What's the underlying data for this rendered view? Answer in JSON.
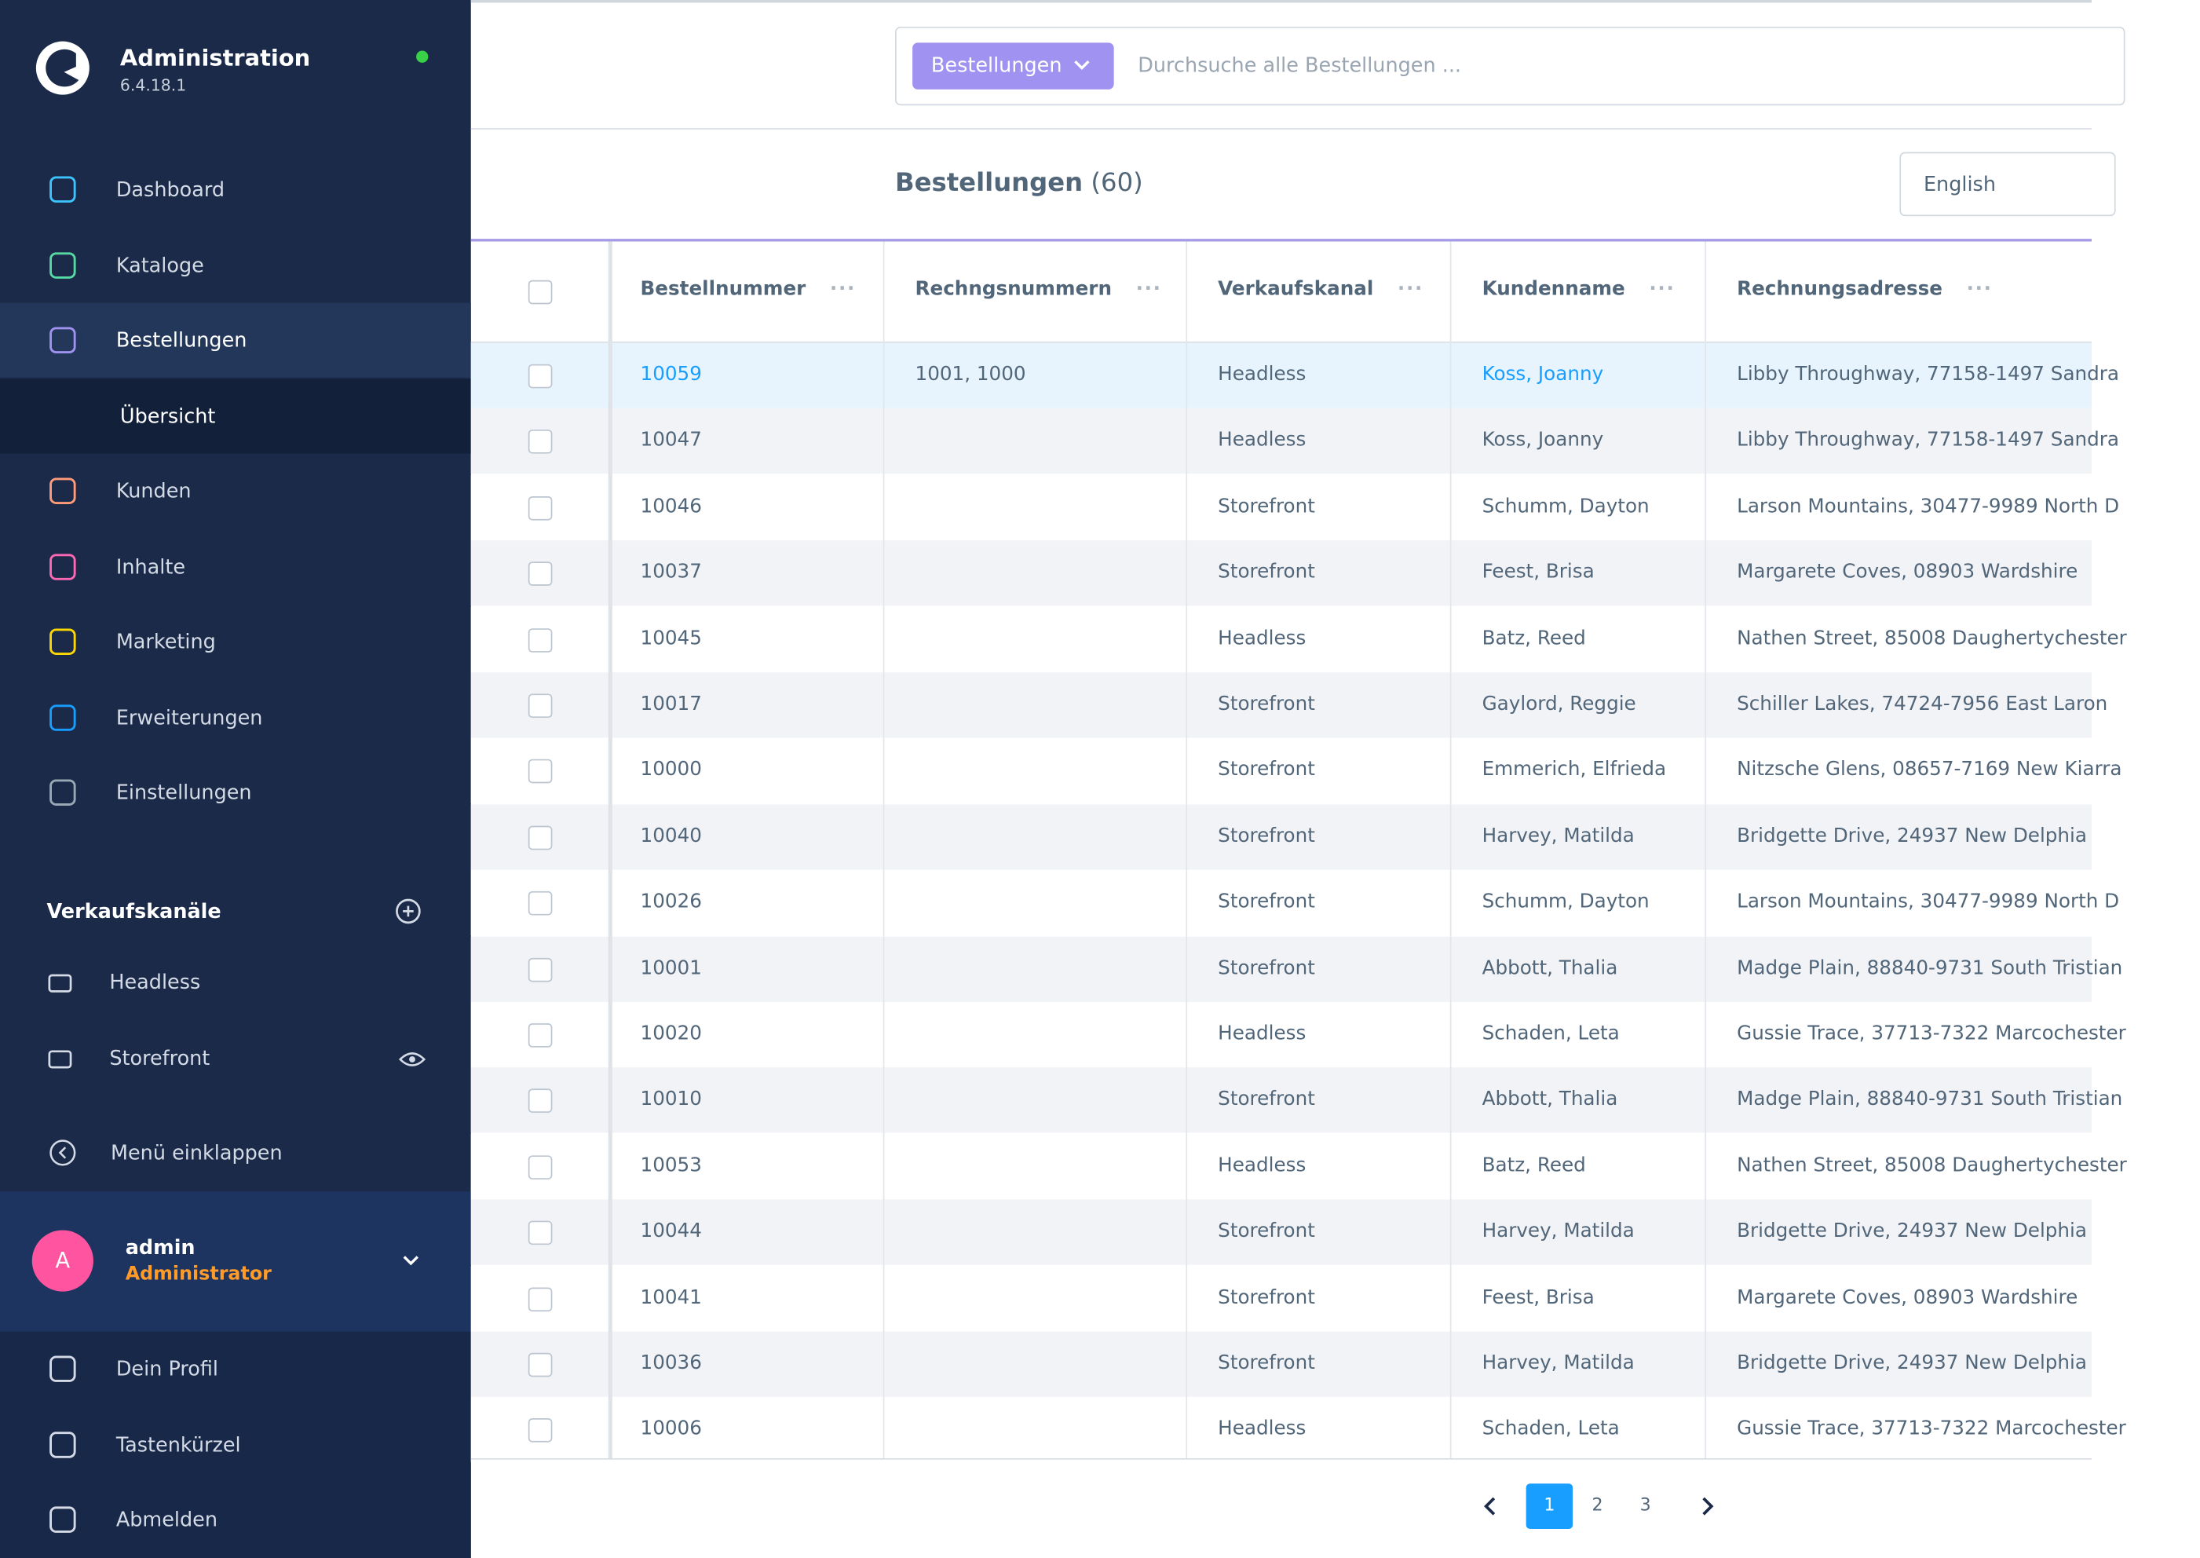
{
  "sidebar": {
    "title": "Administration",
    "version": "6.4.18.1",
    "nav": [
      "Dashboard",
      "Kataloge",
      "Bestellungen",
      "Übersicht",
      "Kunden",
      "Inhalte",
      "Marketing",
      "Erweiterungen",
      "Einstellungen"
    ],
    "sales_channels_title": "Verkaufskanäle",
    "sales_channels": [
      "Headless",
      "Storefront"
    ],
    "collapse": "Menü einklappen",
    "user": {
      "initial": "A",
      "name": "admin",
      "role": "Administrator"
    },
    "user_menu": [
      "Dein Profil",
      "Tastenkürzel",
      "Abmelden"
    ]
  },
  "search": {
    "entity": "Bestellungen",
    "placeholder": "Durchsuche alle Bestellungen ..."
  },
  "header": {
    "title": "Bestellungen",
    "count": "(60)",
    "language": "English"
  },
  "table": {
    "columns": [
      "Bestellnummer",
      "Rechngsnummern",
      "Verkaufskanal",
      "Kundenname",
      "Rechnungsadresse"
    ],
    "rows": [
      [
        "10059",
        "1001, 1000",
        "Headless",
        "Koss, Joanny",
        "Libby Throughway, 77158-1497 Sandra"
      ],
      [
        "10047",
        "",
        "Headless",
        "Koss, Joanny",
        "Libby Throughway, 77158-1497 Sandra"
      ],
      [
        "10046",
        "",
        "Storefront",
        "Schumm, Dayton",
        "Larson Mountains, 30477-9989 North D"
      ],
      [
        "10037",
        "",
        "Storefront",
        "Feest, Brisa",
        "Margarete Coves, 08903 Wardshire"
      ],
      [
        "10045",
        "",
        "Headless",
        "Batz, Reed",
        "Nathen Street, 85008 Daughertychester"
      ],
      [
        "10017",
        "",
        "Storefront",
        "Gaylord, Reggie",
        "Schiller Lakes, 74724-7956 East Laron"
      ],
      [
        "10000",
        "",
        "Storefront",
        "Emmerich, Elfrieda",
        "Nitzsche Glens, 08657-7169 New Kiarra"
      ],
      [
        "10040",
        "",
        "Storefront",
        "Harvey, Matilda",
        "Bridgette Drive, 24937 New Delphia"
      ],
      [
        "10026",
        "",
        "Storefront",
        "Schumm, Dayton",
        "Larson Mountains, 30477-9989 North D"
      ],
      [
        "10001",
        "",
        "Storefront",
        "Abbott, Thalia",
        "Madge Plain, 88840-9731 South Tristian"
      ],
      [
        "10020",
        "",
        "Headless",
        "Schaden, Leta",
        "Gussie Trace, 37713-7322 Marcochester"
      ],
      [
        "10010",
        "",
        "Storefront",
        "Abbott, Thalia",
        "Madge Plain, 88840-9731 South Tristian"
      ],
      [
        "10053",
        "",
        "Headless",
        "Batz, Reed",
        "Nathen Street, 85008 Daughertychester"
      ],
      [
        "10044",
        "",
        "Storefront",
        "Harvey, Matilda",
        "Bridgette Drive, 24937 New Delphia"
      ],
      [
        "10041",
        "",
        "Storefront",
        "Feest, Brisa",
        "Margarete Coves, 08903 Wardshire"
      ],
      [
        "10036",
        "",
        "Storefront",
        "Harvey, Matilda",
        "Bridgette Drive, 24937 New Delphia"
      ],
      [
        "10006",
        "",
        "Headless",
        "Schaden, Leta",
        "Gussie Trace, 37713-7322 Marcochester"
      ]
    ]
  },
  "pagination": {
    "pages": [
      "1",
      "2",
      "3"
    ],
    "active": "1"
  }
}
